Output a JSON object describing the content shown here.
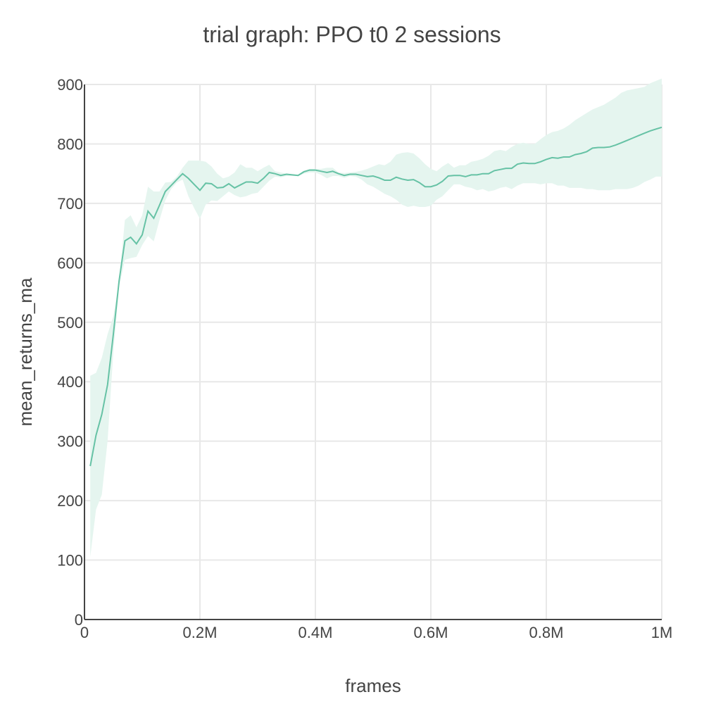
{
  "chart_data": {
    "type": "line",
    "title": "trial graph: PPO t0 2 sessions",
    "xlabel": "frames",
    "ylabel": "mean_returns_ma",
    "xlim": [
      0,
      1000000
    ],
    "ylim": [
      0,
      900
    ],
    "x_ticks": [
      {
        "value": 0,
        "label": "0"
      },
      {
        "value": 200000,
        "label": "0.2M"
      },
      {
        "value": 400000,
        "label": "0.4M"
      },
      {
        "value": 600000,
        "label": "0.6M"
      },
      {
        "value": 800000,
        "label": "0.8M"
      },
      {
        "value": 1000000,
        "label": "1M"
      }
    ],
    "y_ticks": [
      {
        "value": 0,
        "label": "0"
      },
      {
        "value": 100,
        "label": "100"
      },
      {
        "value": 200,
        "label": "200"
      },
      {
        "value": 300,
        "label": "300"
      },
      {
        "value": 400,
        "label": "400"
      },
      {
        "value": 500,
        "label": "500"
      },
      {
        "value": 600,
        "label": "600"
      },
      {
        "value": 700,
        "label": "700"
      },
      {
        "value": 800,
        "label": "800"
      },
      {
        "value": 900,
        "label": "900"
      }
    ],
    "grid": true,
    "legend": "none",
    "line_color": "#66c2a5",
    "band_color": "#e5f5ef",
    "series": [
      {
        "x": [
          10000,
          20000,
          30000,
          40000,
          50000,
          60000,
          70000,
          80000,
          90000,
          100000,
          110000,
          120000,
          130000,
          140000,
          150000,
          160000,
          170000,
          180000,
          190000,
          200000,
          210000,
          220000,
          230000,
          240000,
          250000,
          260000,
          270000,
          280000,
          290000,
          300000,
          310000,
          320000,
          330000,
          340000,
          350000,
          360000,
          370000,
          380000,
          390000,
          400000,
          410000,
          420000,
          430000,
          440000,
          450000,
          460000,
          470000,
          480000,
          490000,
          500000,
          510000,
          520000,
          530000,
          540000,
          550000,
          560000,
          570000,
          580000,
          590000,
          600000,
          610000,
          620000,
          630000,
          640000,
          650000,
          660000,
          670000,
          680000,
          690000,
          700000,
          710000,
          720000,
          730000,
          740000,
          750000,
          760000,
          770000,
          780000,
          790000,
          800000,
          810000,
          820000,
          830000,
          840000,
          850000,
          860000,
          870000,
          880000,
          890000,
          900000,
          910000,
          920000,
          930000,
          940000,
          950000,
          960000,
          970000,
          980000,
          990000,
          1000000
        ],
        "values": [
          258,
          310,
          345,
          395,
          480,
          570,
          637,
          643,
          632,
          647,
          687,
          675,
          697,
          720,
          730,
          740,
          750,
          742,
          732,
          722,
          734,
          733,
          726,
          727,
          733,
          726,
          731,
          736,
          736,
          734,
          742,
          752,
          750,
          747,
          749,
          748,
          747,
          753,
          756,
          756,
          754,
          752,
          754,
          750,
          747,
          749,
          749,
          747,
          745,
          746,
          743,
          739,
          739,
          744,
          741,
          739,
          740,
          735,
          728,
          728,
          731,
          737,
          746,
          747,
          747,
          745,
          748,
          748,
          750,
          750,
          755,
          757,
          759,
          759,
          766,
          768,
          767,
          767,
          770,
          774,
          777,
          776,
          778,
          778,
          782,
          784,
          787,
          793,
          794,
          794,
          795,
          798,
          802,
          806,
          810,
          814,
          818,
          822,
          825,
          828
        ],
        "upper": [
          410,
          415,
          440,
          480,
          510,
          570,
          672,
          680,
          660,
          680,
          728,
          720,
          720,
          735,
          736,
          745,
          760,
          772,
          772,
          772,
          770,
          762,
          750,
          742,
          745,
          752,
          766,
          760,
          760,
          754,
          760,
          765,
          754,
          752,
          750,
          749,
          748,
          755,
          758,
          758,
          758,
          760,
          760,
          752,
          751,
          752,
          753,
          755,
          758,
          762,
          766,
          764,
          770,
          782,
          785,
          786,
          784,
          776,
          766,
          758,
          754,
          762,
          768,
          760,
          764,
          764,
          770,
          772,
          775,
          780,
          788,
          790,
          788,
          795,
          800,
          802,
          800,
          800,
          808,
          815,
          820,
          822,
          826,
          832,
          840,
          846,
          852,
          858,
          862,
          866,
          872,
          878,
          886,
          890,
          892,
          894,
          896,
          902,
          906,
          910
        ],
        "lower": [
          105,
          185,
          210,
          300,
          450,
          560,
          605,
          608,
          610,
          630,
          645,
          636,
          672,
          705,
          724,
          735,
          740,
          712,
          692,
          674,
          698,
          705,
          704,
          712,
          720,
          714,
          710,
          712,
          716,
          718,
          728,
          738,
          745,
          744,
          746,
          746,
          746,
          750,
          752,
          752,
          748,
          742,
          746,
          746,
          743,
          746,
          745,
          740,
          732,
          728,
          722,
          716,
          712,
          706,
          698,
          694,
          696,
          694,
          694,
          696,
          706,
          712,
          722,
          732,
          732,
          728,
          726,
          722,
          724,
          720,
          722,
          726,
          728,
          724,
          730,
          734,
          734,
          734,
          732,
          734,
          734,
          730,
          730,
          726,
          726,
          726,
          724,
          724,
          722,
          722,
          722,
          724,
          724,
          724,
          726,
          730,
          736,
          740,
          745,
          745
        ]
      }
    ]
  }
}
